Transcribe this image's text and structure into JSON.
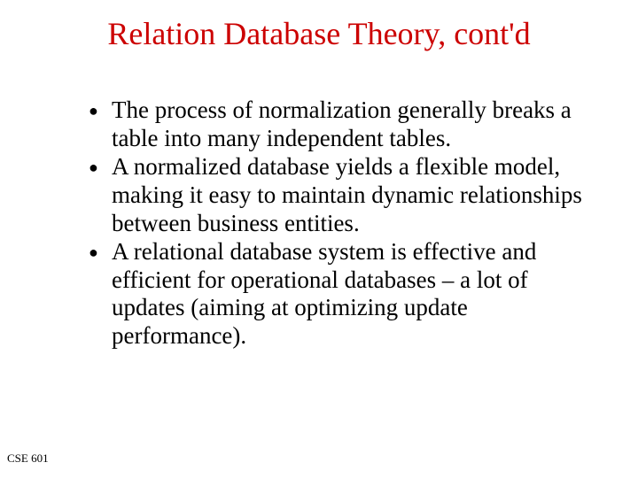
{
  "slide": {
    "title": "Relation Database Theory, cont'd",
    "title_color": "#cc0000",
    "title_fontsize": 36,
    "body_fontsize": 27,
    "body_color": "#000000",
    "background_color": "#ffffff",
    "bullets": [
      {
        "marker": "●",
        "text": "The process of normalization generally breaks a table into many independent tables."
      },
      {
        "marker": "●",
        "text": "A normalized database yields a flexible model, making it easy to maintain dynamic relationships between business entities."
      },
      {
        "marker": "●",
        "text": "A relational database system is effective and efficient for operational databases – a lot of updates (aiming at optimizing update performance)."
      }
    ],
    "footer": "CSE 601",
    "footer_fontsize": 13
  }
}
